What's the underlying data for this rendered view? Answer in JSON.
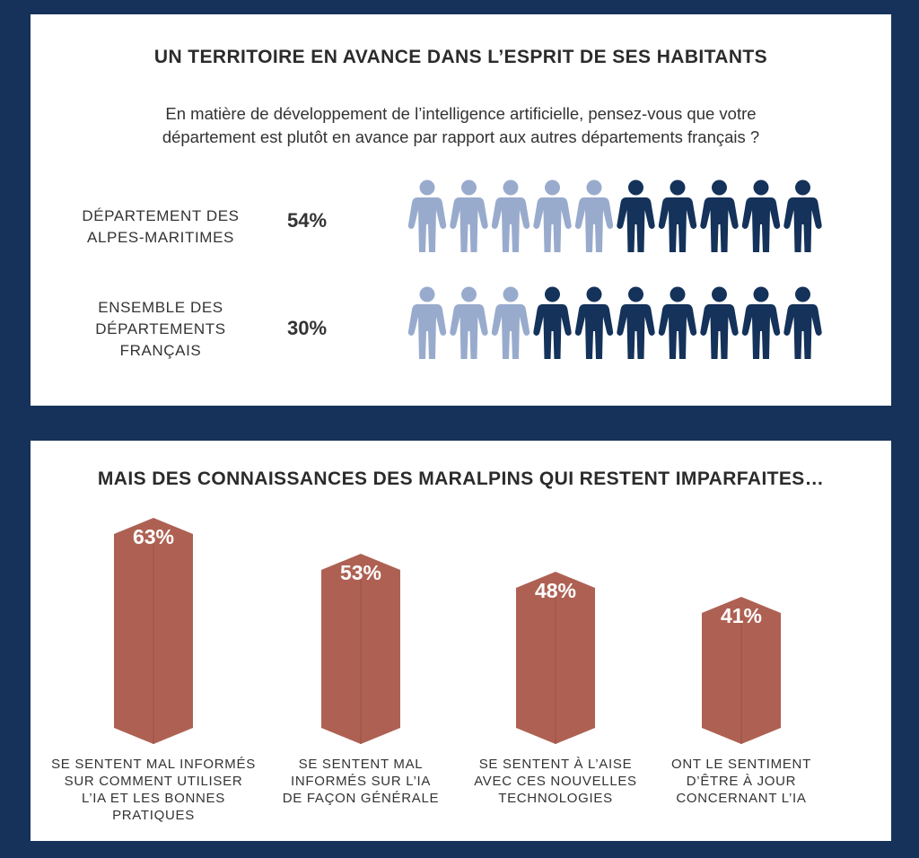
{
  "colors": {
    "background": "#17325a",
    "person_light": "#99abcd",
    "person_dark": "#14325a",
    "bar": "#ae6153",
    "bar_shade": "#9e5448"
  },
  "top_panel": {
    "title": "UN TERRITOIRE EN AVANCE DANS L’ESPRIT DE SES HABITANTS",
    "question_lines": [
      "En matière de développement de l’intelligence artificielle, pensez-vous que votre",
      "département est plutôt en avance par rapport aux autres départements français ?"
    ],
    "rows": [
      {
        "label_lines": [
          "DÉPARTEMENT DES",
          "ALPES-MARITIMES"
        ],
        "value_label": "54%",
        "value": 54,
        "light_count": 5
      },
      {
        "label_lines": [
          "ENSEMBLE DES",
          "DÉPARTEMENTS",
          "FRANÇAIS"
        ],
        "value_label": "30%",
        "value": 30,
        "light_count": 3
      }
    ]
  },
  "bottom_panel": {
    "title": "MAIS DES CONNAISSANCES DES MARALPINS QUI RESTENT IMPARFAITES…"
  },
  "chart_data": {
    "type": "bar",
    "categories": [
      "SE SENTENT MAL INFORMÉS SUR COMMENT UTILISER L’IA ET LES BONNES PRATIQUES",
      "SE SENTENT MAL INFORMÉS SUR L’IA DE FAÇON GÉNÉRALE",
      "SE SENTENT À L’AISE AVEC CES NOUVELLES TECHNOLOGIES",
      "ONT LE SENTIMENT D’ÊTRE À JOUR CONCERNANT L’IA"
    ],
    "category_lines": [
      [
        "SE SENTENT MAL INFORMÉS",
        "SUR COMMENT UTILISER",
        "L’IA ET LES BONNES",
        "PRATIQUES"
      ],
      [
        "SE SENTENT MAL",
        "INFORMÉS SUR L’IA",
        "DE FAÇON GÉNÉRALE"
      ],
      [
        "SE SENTENT À L’AISE",
        "AVEC CES NOUVELLES",
        "TECHNOLOGIES"
      ],
      [
        "ONT LE SENTIMENT",
        "D’ÊTRE À JOUR",
        "CONCERNANT L’IA"
      ]
    ],
    "values": [
      63,
      53,
      48,
      41
    ],
    "value_labels": [
      "63%",
      "53%",
      "48%",
      "41%"
    ],
    "ylim": [
      0,
      63
    ]
  }
}
